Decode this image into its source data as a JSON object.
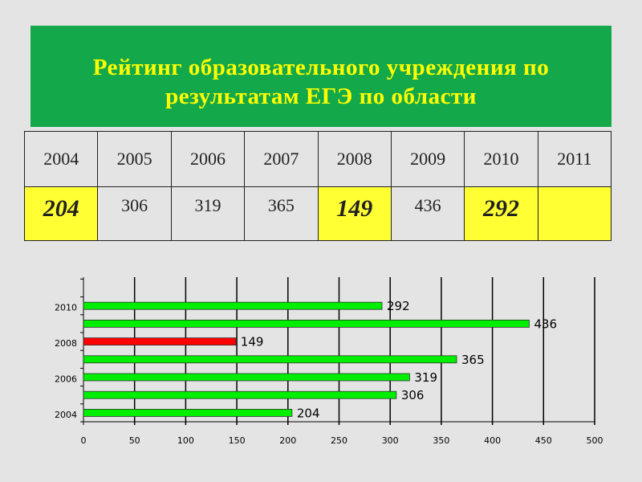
{
  "header": {
    "title": [
      "Рейтинг образовательного учреждения по",
      "результатам ЕГЭ по области"
    ]
  },
  "table": {
    "columns": [
      "2004",
      "2005",
      "2006",
      "2007",
      "2008",
      "2009",
      "2010",
      "2011"
    ],
    "values": [
      "204",
      "306",
      "319",
      "365",
      "149",
      "436",
      "292"
    ]
  },
  "chart_data": {
    "type": "barh",
    "categories": [
      "2004",
      null,
      "2006",
      null,
      "2008",
      null,
      "2010"
    ],
    "values": [
      204,
      306,
      319,
      365,
      149,
      436,
      292
    ],
    "colors": [
      "#00ee00",
      "#00ee00",
      "#00ee00",
      "#00ee00",
      "#ff0000",
      "#00ee00",
      "#00ee00"
    ],
    "xlim": [
      0,
      500
    ],
    "xticks": [
      0,
      50,
      100,
      150,
      200,
      250,
      300,
      350,
      400,
      450,
      500
    ],
    "grid": true
  }
}
